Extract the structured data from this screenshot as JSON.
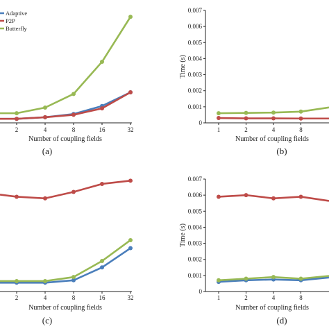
{
  "colors": {
    "adaptive": "#4A7EBB",
    "p2p": "#BE4B48",
    "butterfly": "#98B954",
    "axis": "#222222"
  },
  "legend": {
    "items": [
      {
        "label": "Adaptive",
        "color": "#4A7EBB"
      },
      {
        "label": "P2P",
        "color": "#BE4B48"
      },
      {
        "label": "Butterfly",
        "color": "#98B954"
      }
    ],
    "placement": "top-left"
  },
  "chart_data": [
    {
      "type": "line",
      "panel_label": "(a)",
      "categories": [
        "2",
        "4",
        "8",
        "16",
        "32"
      ],
      "visible_first_category": "",
      "xlabel": "Number of coupling fields",
      "ylabel": "",
      "yticks": [],
      "ylim": [
        0,
        0.007
      ],
      "series": [
        {
          "name": "Adaptive",
          "values": [
            0.00025,
            0.00035,
            0.00055,
            0.00105,
            0.0019
          ]
        },
        {
          "name": "P2P",
          "values": [
            0.00025,
            0.00035,
            0.0005,
            0.0009,
            0.0019
          ]
        },
        {
          "name": "Butterfly",
          "values": [
            0.0006,
            0.00095,
            0.0018,
            0.0038,
            0.0066
          ]
        }
      ]
    },
    {
      "type": "line",
      "panel_label": "(b)",
      "categories": [
        "1",
        "2",
        "4",
        "8"
      ],
      "xlabel": "Number of coupling fields",
      "ylabel": "Time (s)",
      "yticks": [
        "0",
        "0.001",
        "0.002",
        "0.003",
        "0.004",
        "0.005",
        "0.006",
        "0.007"
      ],
      "ylim": [
        0,
        0.007
      ],
      "series": [
        {
          "name": "P2P",
          "values": [
            0.0003,
            0.00028,
            0.00028,
            0.00027
          ]
        },
        {
          "name": "Butterfly",
          "values": [
            0.0006,
            0.00062,
            0.00064,
            0.0007
          ]
        }
      ]
    },
    {
      "type": "line",
      "panel_label": "(c)",
      "categories": [
        "2",
        "4",
        "8",
        "16",
        "32"
      ],
      "xlabel": "Number of coupling fields",
      "ylabel": "",
      "yticks": [],
      "ylim": [
        0,
        0.007
      ],
      "series": [
        {
          "name": "P2P",
          "values": [
            0.0059,
            0.0058,
            0.0062,
            0.0067,
            0.0069
          ]
        },
        {
          "name": "Adaptive",
          "values": [
            0.00055,
            0.00055,
            0.0007,
            0.0015,
            0.0027
          ]
        },
        {
          "name": "Butterfly",
          "values": [
            0.00065,
            0.00065,
            0.0009,
            0.0019,
            0.0032
          ]
        }
      ]
    },
    {
      "type": "line",
      "panel_label": "(d)",
      "categories": [
        "1",
        "2",
        "4",
        "8"
      ],
      "xlabel": "Number of coupling fields",
      "ylabel": "Time (s)",
      "yticks": [
        "0",
        "0.001",
        "0.002",
        "0.003",
        "0.004",
        "0.005",
        "0.006",
        "0.007"
      ],
      "ylim": [
        0,
        0.007
      ],
      "series": [
        {
          "name": "P2P",
          "values": [
            0.0059,
            0.006,
            0.0058,
            0.0059
          ]
        },
        {
          "name": "Adaptive",
          "values": [
            0.0006,
            0.0007,
            0.00075,
            0.0007
          ]
        },
        {
          "name": "Butterfly",
          "values": [
            0.0007,
            0.0008,
            0.0009,
            0.0008
          ]
        }
      ]
    }
  ]
}
